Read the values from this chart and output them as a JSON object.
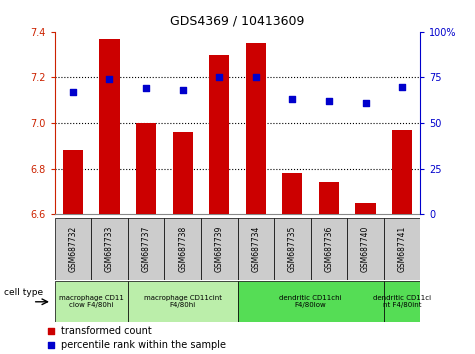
{
  "title": "GDS4369 / 10413609",
  "samples": [
    "GSM687732",
    "GSM687733",
    "GSM687737",
    "GSM687738",
    "GSM687739",
    "GSM687734",
    "GSM687735",
    "GSM687736",
    "GSM687740",
    "GSM687741"
  ],
  "transformed_count": [
    6.88,
    7.37,
    7.0,
    6.96,
    7.3,
    7.35,
    6.78,
    6.74,
    6.65,
    6.97
  ],
  "percentile_rank": [
    67,
    74,
    69,
    68,
    75,
    75,
    63,
    62,
    61,
    70
  ],
  "ylim_left": [
    6.6,
    7.4
  ],
  "ylim_right": [
    0,
    100
  ],
  "yticks_left": [
    6.6,
    6.8,
    7.0,
    7.2,
    7.4
  ],
  "yticks_right": [
    0,
    25,
    50,
    75,
    100
  ],
  "ytick_labels_right": [
    "0",
    "25",
    "50",
    "75",
    "100%"
  ],
  "hlines": [
    6.8,
    7.0,
    7.2
  ],
  "bar_color": "#cc0000",
  "dot_color": "#0000cc",
  "left_axis_color": "#cc2200",
  "right_axis_color": "#0000cc",
  "cell_type_groups": [
    {
      "label": "macrophage CD11\nclow F4/80hi",
      "start": 0,
      "end": 2,
      "color": "#bbeeaa"
    },
    {
      "label": "macrophage CD11cint\nF4/80hi",
      "start": 2,
      "end": 5,
      "color": "#bbeeaa"
    },
    {
      "label": "dendritic CD11chi\nF4/80low",
      "start": 5,
      "end": 9,
      "color": "#55dd55"
    },
    {
      "label": "dendritic CD11ci\nnt F4/80int",
      "start": 9,
      "end": 10,
      "color": "#55dd55"
    }
  ],
  "legend_bar_label": "transformed count",
  "legend_dot_label": "percentile rank within the sample",
  "cell_type_label": "cell type",
  "sample_box_color": "#cccccc",
  "border_color": "#888888"
}
